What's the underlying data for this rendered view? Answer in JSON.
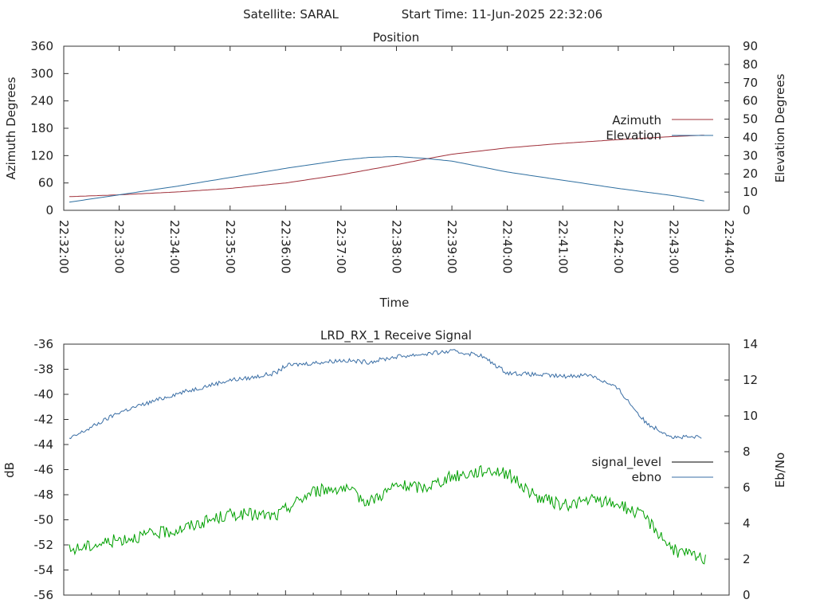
{
  "header": {
    "satellite_label": "Satellite: SARAL",
    "start_time_label": "Start Time: 11-Jun-2025 22:32:06"
  },
  "chart_data": [
    {
      "type": "line",
      "title": "Position",
      "xlabel": "Time",
      "ylabel": "Azimuth Degrees",
      "y2label": "Elevation Degrees",
      "xlim": [
        "22:32:00",
        "22:44:00"
      ],
      "x_ticks": [
        "22:32:00",
        "22:33:00",
        "22:34:00",
        "22:35:00",
        "22:36:00",
        "22:37:00",
        "22:38:00",
        "22:39:00",
        "22:40:00",
        "22:41:00",
        "22:42:00",
        "22:43:00",
        "22:44:00"
      ],
      "ylim": [
        0,
        360
      ],
      "y_ticks": [
        0,
        60,
        120,
        180,
        240,
        300,
        360
      ],
      "y2lim": [
        0,
        90
      ],
      "y2_ticks": [
        0,
        10,
        20,
        30,
        40,
        50,
        60,
        70,
        80,
        90
      ],
      "grid": false,
      "legend": "right",
      "series": [
        {
          "name": "Azimuth",
          "axis": "y",
          "color": "#a0303a",
          "x": [
            "22:32:06",
            "22:33:00",
            "22:34:00",
            "22:35:00",
            "22:36:00",
            "22:37:00",
            "22:38:00",
            "22:38:30",
            "22:39:00",
            "22:40:00",
            "22:41:00",
            "22:42:00",
            "22:43:00",
            "22:43:35"
          ],
          "values": [
            30,
            34,
            40,
            48,
            60,
            78,
            100,
            112,
            123,
            137,
            147,
            155,
            162,
            165
          ]
        },
        {
          "name": "Elevation",
          "axis": "y2",
          "color": "#2f6fa0",
          "x": [
            "22:32:06",
            "22:33:00",
            "22:34:00",
            "22:35:00",
            "22:36:00",
            "22:37:00",
            "22:37:30",
            "22:38:00",
            "22:38:30",
            "22:39:00",
            "22:40:00",
            "22:41:00",
            "22:42:00",
            "22:43:00",
            "22:43:35"
          ],
          "values": [
            4.5,
            8.5,
            13,
            18,
            23,
            27.5,
            29,
            29.5,
            28.5,
            27,
            21,
            16.5,
            12,
            8,
            5
          ]
        }
      ]
    },
    {
      "type": "line",
      "title": "LRD_RX_1 Receive Signal",
      "xlabel": "",
      "ylabel": "dB",
      "y2label": "Eb/No",
      "xlim": [
        "22:32:00",
        "22:44:00"
      ],
      "ylim": [
        -56,
        -36
      ],
      "y_ticks": [
        -36,
        -38,
        -40,
        -42,
        -44,
        -46,
        -48,
        -50,
        -52,
        -54,
        -56
      ],
      "y2lim": [
        0,
        14
      ],
      "y2_ticks": [
        0,
        2,
        4,
        6,
        8,
        10,
        12,
        14
      ],
      "grid": false,
      "legend": "right",
      "series": [
        {
          "name": "signal_level",
          "axis": "y",
          "color": "#000000",
          "x": [],
          "values": []
        },
        {
          "name": "ebno",
          "axis": "y2",
          "color": "#3a6ea5",
          "x": [
            "22:32:06",
            "22:33:00",
            "22:34:00",
            "22:35:00",
            "22:35:20",
            "22:35:50",
            "22:36:00",
            "22:37:00",
            "22:37:30",
            "22:38:00",
            "22:39:00",
            "22:39:30",
            "22:40:00",
            "22:41:00",
            "22:41:30",
            "22:42:00",
            "22:42:30",
            "22:43:00",
            "22:43:30"
          ],
          "values": [
            8.7,
            10.2,
            11.2,
            12.0,
            12.1,
            12.4,
            12.8,
            13.1,
            13.0,
            13.3,
            13.6,
            13.4,
            12.4,
            12.2,
            12.3,
            11.5,
            9.6,
            8.8,
            8.8
          ]
        },
        {
          "name": "",
          "axis": "y2",
          "color": "#00a000",
          "x": [
            "22:32:06",
            "22:33:00",
            "22:34:00",
            "22:35:00",
            "22:35:20",
            "22:35:50",
            "22:36:00",
            "22:36:30",
            "22:37:00",
            "22:37:30",
            "22:38:00",
            "22:38:30",
            "22:39:00",
            "22:39:40",
            "22:40:00",
            "22:40:30",
            "22:41:00",
            "22:41:30",
            "22:42:00",
            "22:42:30",
            "22:43:00",
            "22:43:35"
          ],
          "values": [
            2.5,
            3.1,
            3.6,
            4.5,
            4.5,
            4.4,
            4.8,
            5.8,
            6.0,
            5.2,
            6.1,
            6.0,
            6.6,
            7.0,
            6.8,
            5.5,
            5.0,
            5.3,
            5.1,
            4.3,
            2.5,
            2.0
          ]
        }
      ]
    }
  ]
}
